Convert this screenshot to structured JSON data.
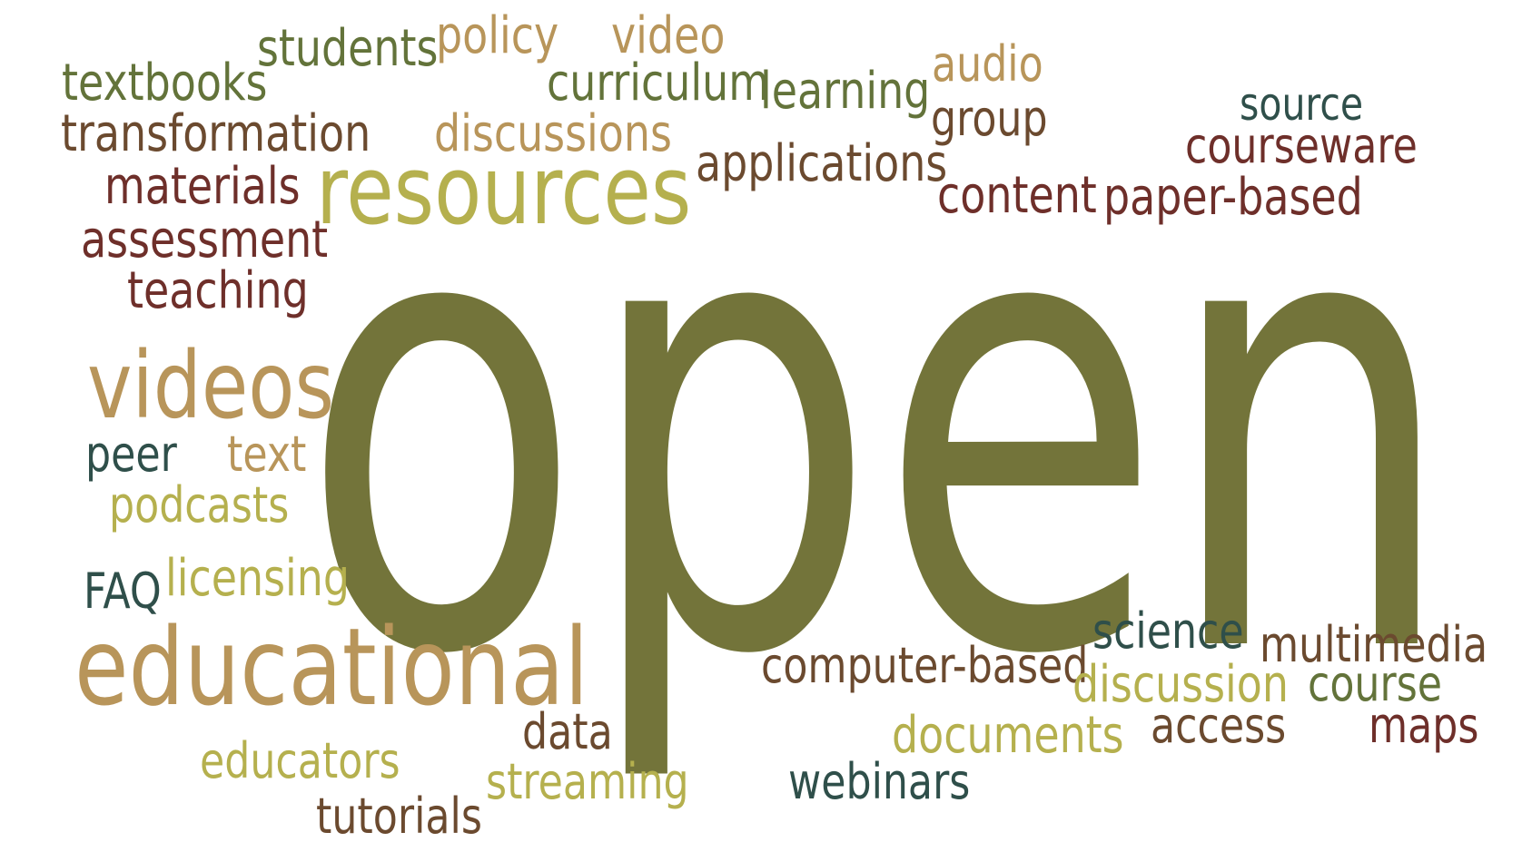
{
  "palette": {
    "olive": "#73743a",
    "olive_green": "#63733a",
    "khaki": "#b5b04e",
    "tan": "#b8955a",
    "brown": "#6b4a2f",
    "maroon": "#6e2f2a",
    "dark_teal": "#2f4f4a"
  },
  "words": [
    {
      "id": "open",
      "text": "open"
    },
    {
      "id": "resources",
      "text": "resources"
    },
    {
      "id": "educational",
      "text": "educational"
    },
    {
      "id": "videos",
      "text": "videos"
    },
    {
      "id": "students",
      "text": "students"
    },
    {
      "id": "policy",
      "text": "policy"
    },
    {
      "id": "video",
      "text": "video"
    },
    {
      "id": "textbooks",
      "text": "textbooks"
    },
    {
      "id": "curriculum",
      "text": "curriculum"
    },
    {
      "id": "learning",
      "text": "learning"
    },
    {
      "id": "audio",
      "text": "audio"
    },
    {
      "id": "group",
      "text": "group"
    },
    {
      "id": "source",
      "text": "source"
    },
    {
      "id": "transformation",
      "text": "transformation"
    },
    {
      "id": "discussions",
      "text": "discussions"
    },
    {
      "id": "courseware",
      "text": "courseware"
    },
    {
      "id": "materials",
      "text": "materials"
    },
    {
      "id": "applications",
      "text": "applications"
    },
    {
      "id": "content",
      "text": "content"
    },
    {
      "id": "paper-based",
      "text": "paper-based"
    },
    {
      "id": "assessment",
      "text": "assessment"
    },
    {
      "id": "teaching",
      "text": "teaching"
    },
    {
      "id": "peer",
      "text": "peer"
    },
    {
      "id": "text",
      "text": "text"
    },
    {
      "id": "podcasts",
      "text": "podcasts"
    },
    {
      "id": "faq",
      "text": "FAQ"
    },
    {
      "id": "licensing",
      "text": "licensing"
    },
    {
      "id": "science",
      "text": "science"
    },
    {
      "id": "multimedia",
      "text": "multimedia"
    },
    {
      "id": "computer-based",
      "text": "computer-based"
    },
    {
      "id": "discussion",
      "text": "discussion"
    },
    {
      "id": "course",
      "text": "course"
    },
    {
      "id": "access",
      "text": "access"
    },
    {
      "id": "maps",
      "text": "maps"
    },
    {
      "id": "data",
      "text": "data"
    },
    {
      "id": "documents",
      "text": "documents"
    },
    {
      "id": "educators",
      "text": "educators"
    },
    {
      "id": "streaming",
      "text": "streaming"
    },
    {
      "id": "webinars",
      "text": "webinars"
    },
    {
      "id": "tutorials",
      "text": "tutorials"
    }
  ]
}
